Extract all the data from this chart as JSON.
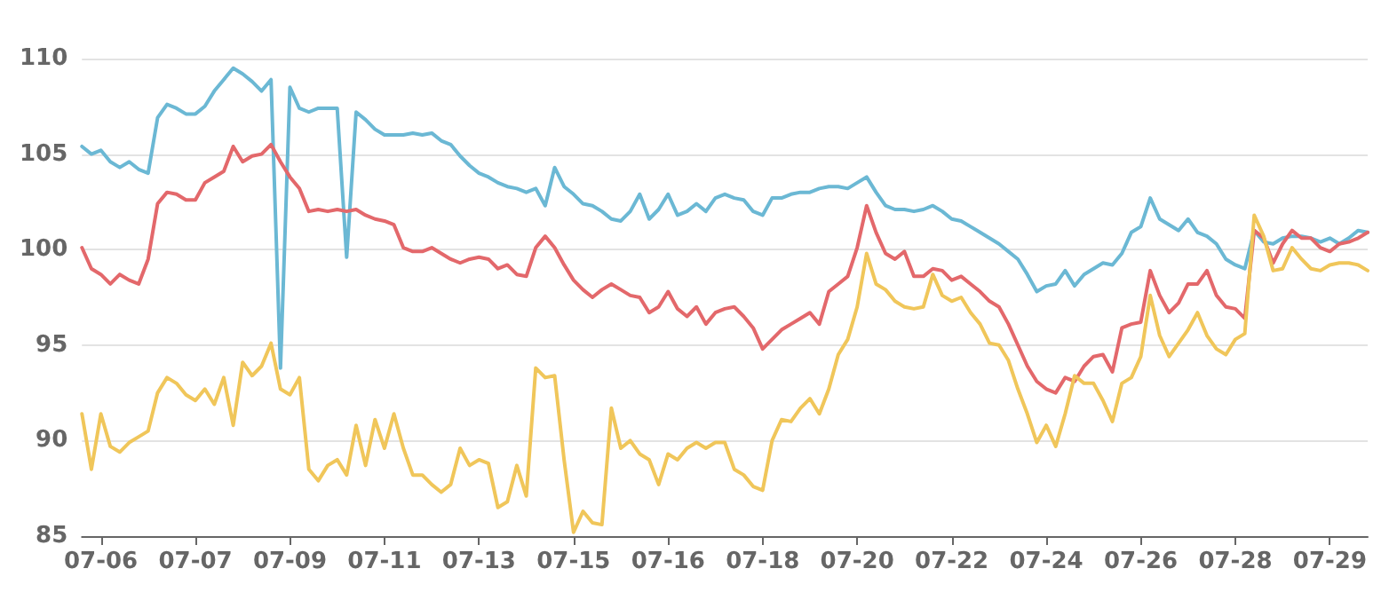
{
  "chart_data": {
    "type": "line",
    "categories": [
      null,
      null,
      "07-06",
      null,
      null,
      null,
      null,
      null,
      null,
      null,
      null,
      null,
      "07-07",
      null,
      null,
      null,
      null,
      null,
      null,
      null,
      null,
      null,
      "07-09",
      null,
      null,
      null,
      null,
      null,
      null,
      null,
      null,
      null,
      "07-11",
      null,
      null,
      null,
      null,
      null,
      null,
      null,
      null,
      null,
      "07-13",
      null,
      null,
      null,
      null,
      null,
      null,
      null,
      null,
      null,
      "07-15",
      null,
      null,
      null,
      null,
      null,
      null,
      null,
      null,
      null,
      "07-16",
      null,
      null,
      null,
      null,
      null,
      null,
      null,
      null,
      null,
      "07-18",
      null,
      null,
      null,
      null,
      null,
      null,
      null,
      null,
      null,
      "07-20",
      null,
      null,
      null,
      null,
      null,
      null,
      null,
      null,
      null,
      "07-22",
      null,
      null,
      null,
      null,
      null,
      null,
      null,
      null,
      null,
      "07-24",
      null,
      null,
      null,
      null,
      null,
      null,
      null,
      null,
      null,
      "07-26",
      null,
      null,
      null,
      null,
      null,
      null,
      null,
      null,
      null,
      "07-28",
      null,
      null,
      null,
      null,
      null,
      null,
      null,
      null,
      null,
      "07-29",
      null,
      null,
      null,
      null
    ],
    "ylim": [
      85,
      110
    ],
    "yticks": [
      85,
      90,
      95,
      100,
      105,
      110
    ],
    "grid": "y",
    "marker": "none",
    "line_style": "solid",
    "series": [
      {
        "color": "#6bb8d4",
        "values": [
          105.4,
          105.0,
          105.2,
          104.6,
          104.3,
          104.6,
          104.2,
          104.0,
          106.9,
          107.6,
          107.4,
          107.1,
          107.1,
          107.5,
          108.3,
          108.9,
          109.5,
          109.2,
          108.8,
          108.3,
          108.9,
          93.8,
          108.5,
          107.4,
          107.2,
          107.4,
          107.4,
          107.4,
          99.6,
          107.2,
          106.8,
          106.3,
          106.0,
          106.0,
          106.0,
          106.1,
          106.0,
          106.1,
          105.7,
          105.5,
          104.9,
          104.4,
          104.0,
          103.8,
          103.5,
          103.3,
          103.2,
          103.0,
          103.2,
          102.3,
          104.3,
          103.3,
          102.9,
          102.4,
          102.3,
          102.0,
          101.6,
          101.5,
          102.0,
          102.9,
          101.6,
          102.1,
          102.9,
          101.8,
          102.0,
          102.4,
          102.0,
          102.7,
          102.9,
          102.7,
          102.6,
          102.0,
          101.8,
          102.7,
          102.7,
          102.9,
          103.0,
          103.0,
          103.2,
          103.3,
          103.3,
          103.2,
          103.5,
          103.8,
          103.0,
          102.3,
          102.1,
          102.1,
          102.0,
          102.1,
          102.3,
          102.0,
          101.6,
          101.5,
          101.2,
          100.9,
          100.6,
          100.3,
          99.9,
          99.5,
          98.7,
          97.8,
          98.1,
          98.2,
          98.9,
          98.1,
          98.7,
          99.0,
          99.3,
          99.2,
          99.8,
          100.9,
          101.2,
          102.7,
          101.6,
          101.3,
          101.0,
          101.6,
          100.9,
          100.7,
          100.3,
          99.5,
          99.2,
          99.0,
          101.0,
          100.4,
          100.3,
          100.6,
          100.7,
          100.7,
          100.6,
          100.4,
          100.6,
          100.3,
          100.6,
          101.0,
          100.9
        ]
      },
      {
        "color": "#e3686b",
        "values": [
          100.1,
          99.0,
          98.7,
          98.2,
          98.7,
          98.4,
          98.2,
          99.5,
          102.4,
          103.0,
          102.9,
          102.6,
          102.6,
          103.5,
          103.8,
          104.1,
          105.4,
          104.6,
          104.9,
          105.0,
          105.5,
          104.6,
          103.8,
          103.2,
          102.0,
          102.1,
          102.0,
          102.1,
          102.0,
          102.1,
          101.8,
          101.6,
          101.5,
          101.3,
          100.1,
          99.9,
          99.9,
          100.1,
          99.8,
          99.5,
          99.3,
          99.5,
          99.6,
          99.5,
          99.0,
          99.2,
          98.7,
          98.6,
          100.1,
          100.7,
          100.1,
          99.2,
          98.4,
          97.9,
          97.5,
          97.9,
          98.2,
          97.9,
          97.6,
          97.5,
          96.7,
          97.0,
          97.8,
          96.9,
          96.5,
          97.0,
          96.1,
          96.7,
          96.9,
          97.0,
          96.5,
          95.9,
          94.8,
          95.3,
          95.8,
          96.1,
          96.4,
          96.7,
          96.1,
          97.8,
          98.2,
          98.6,
          100.1,
          102.3,
          100.9,
          99.8,
          99.5,
          99.9,
          98.6,
          98.6,
          99.0,
          98.9,
          98.4,
          98.6,
          98.2,
          97.8,
          97.3,
          97.0,
          96.1,
          95.0,
          93.9,
          93.1,
          92.7,
          92.5,
          93.3,
          93.1,
          93.9,
          94.4,
          94.5,
          93.6,
          95.9,
          96.1,
          96.2,
          98.9,
          97.6,
          96.7,
          97.2,
          98.2,
          98.2,
          98.9,
          97.6,
          97.0,
          96.9,
          96.4,
          101.0,
          100.6,
          99.3,
          100.3,
          101.0,
          100.6,
          100.6,
          100.1,
          99.9,
          100.3,
          100.4,
          100.6,
          100.9
        ]
      },
      {
        "color": "#f0c65a",
        "values": [
          91.4,
          88.5,
          91.4,
          89.7,
          89.4,
          89.9,
          90.2,
          90.5,
          92.5,
          93.3,
          93.0,
          92.4,
          92.1,
          92.7,
          91.9,
          93.3,
          90.8,
          94.1,
          93.4,
          93.9,
          95.1,
          92.7,
          92.4,
          93.3,
          88.5,
          87.9,
          88.7,
          89.0,
          88.2,
          90.8,
          88.7,
          91.1,
          89.6,
          91.4,
          89.6,
          88.2,
          88.2,
          87.7,
          87.3,
          87.7,
          89.6,
          88.7,
          89.0,
          88.8,
          86.5,
          86.8,
          88.7,
          87.1,
          93.8,
          93.3,
          93.4,
          89.0,
          85.2,
          86.3,
          85.7,
          85.6,
          91.7,
          89.6,
          90.0,
          89.3,
          89.0,
          87.7,
          89.3,
          89.0,
          89.6,
          89.9,
          89.6,
          89.9,
          89.9,
          88.5,
          88.2,
          87.6,
          87.4,
          90.0,
          91.1,
          91.0,
          91.7,
          92.2,
          91.4,
          92.7,
          94.5,
          95.3,
          97.0,
          99.8,
          98.2,
          97.9,
          97.3,
          97.0,
          96.9,
          97.0,
          98.7,
          97.6,
          97.3,
          97.5,
          96.7,
          96.1,
          95.1,
          95.0,
          94.2,
          92.7,
          91.4,
          89.9,
          90.8,
          89.7,
          91.4,
          93.4,
          93.0,
          93.0,
          92.1,
          91.0,
          93.0,
          93.3,
          94.4,
          97.6,
          95.5,
          94.4,
          95.1,
          95.8,
          96.7,
          95.5,
          94.8,
          94.5,
          95.3,
          95.6,
          101.8,
          100.7,
          98.9,
          99.0,
          100.1,
          99.5,
          99.0,
          98.9,
          99.2,
          99.3,
          99.3,
          99.2,
          98.9
        ]
      }
    ]
  }
}
